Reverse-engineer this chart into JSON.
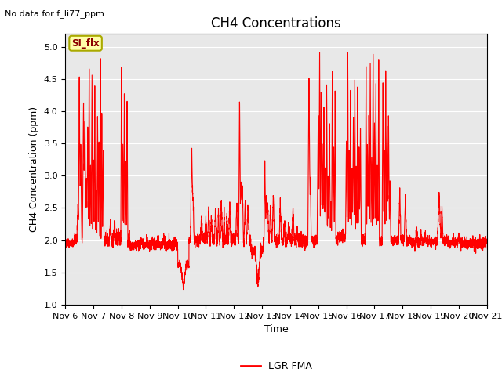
{
  "title": "CH4 Concentrations",
  "top_left_text": "No data for f_li77_ppm",
  "xlabel": "Time",
  "ylabel": "CH4 Concentration (ppm)",
  "ylim": [
    1.0,
    5.2
  ],
  "yticks": [
    1.0,
    1.5,
    2.0,
    2.5,
    3.0,
    3.5,
    4.0,
    4.5,
    5.0
  ],
  "xlim_start": 0,
  "xlim_end": 15,
  "xtick_labels": [
    "Nov 6",
    "Nov 7",
    "Nov 8",
    "Nov 9",
    "Nov 10",
    "Nov 11",
    "Nov 12",
    "Nov 13",
    "Nov 14",
    "Nov 15",
    "Nov 16",
    "Nov 17",
    "Nov 18",
    "Nov 19",
    "Nov 20",
    "Nov 21"
  ],
  "line_color": "#FF0000",
  "line_width": 0.8,
  "legend_label": "LGR FMA",
  "legend_line_color": "#FF0000",
  "box_label": "SI_flx",
  "box_facecolor": "#FFFFAA",
  "box_edgecolor": "#AAAA00",
  "plot_bg_color": "#E8E8E8",
  "title_fontsize": 12,
  "axis_label_fontsize": 9,
  "tick_fontsize": 8
}
